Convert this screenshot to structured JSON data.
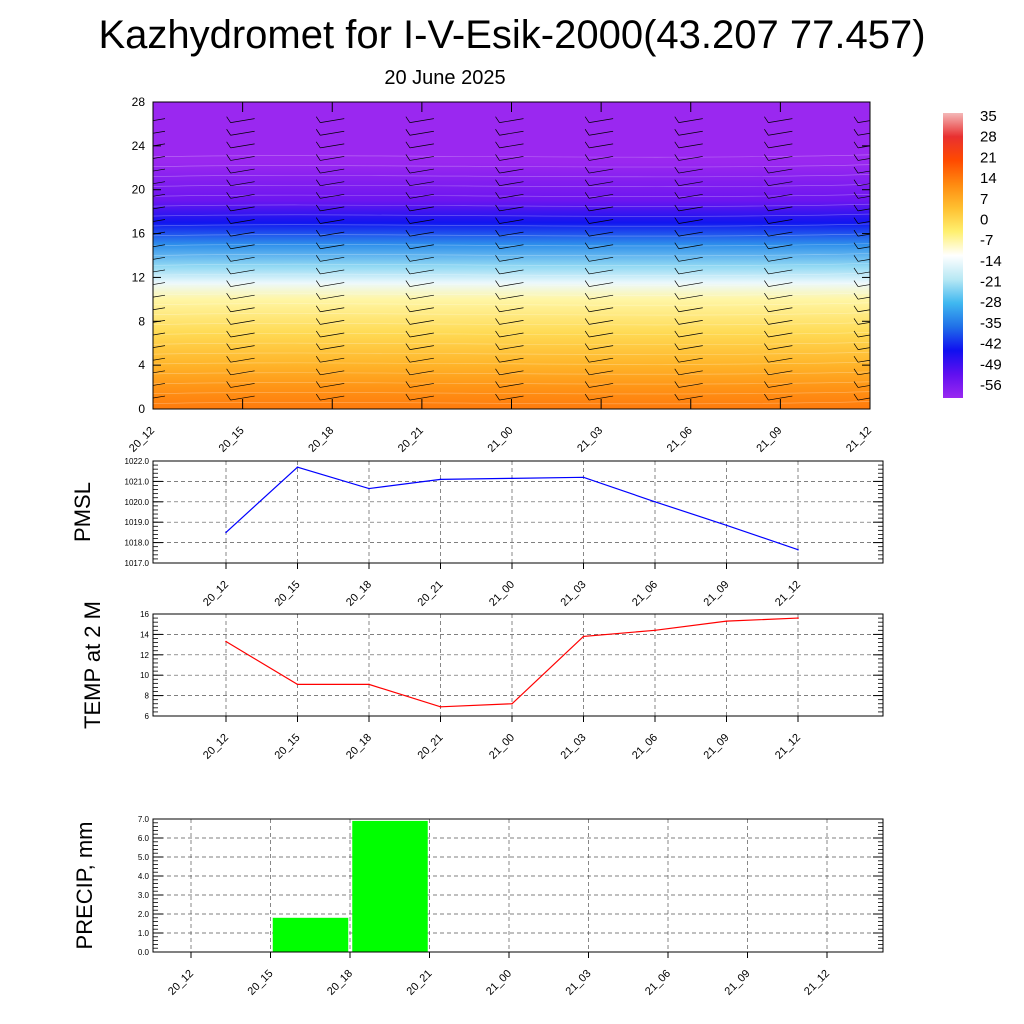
{
  "title": "Kazhydromet for I-V-Esik-2000(43.207 77.457)",
  "subtitle": "20 June 2025",
  "colors": {
    "pmsl_line": "#0000ff",
    "temp_line": "#ff0000",
    "precip_bar": "#00ff00",
    "colorbar": [
      "#f4b8b8",
      "#e83030",
      "#ff4a00",
      "#ff8a10",
      "#ffc030",
      "#fff070",
      "#ffffff",
      "#b8e8f4",
      "#40b8f0",
      "#2070e8",
      "#1010f0",
      "#6010f0",
      "#9a28f0"
    ]
  },
  "chart_data": [
    {
      "type": "heatmap",
      "title": "",
      "x_tick_labels": [
        "20_12",
        "20_15",
        "20_18",
        "20_21",
        "21_00",
        "21_03",
        "21_06",
        "21_09",
        "21_12"
      ],
      "y_ticks": [
        0,
        4,
        8,
        12,
        16,
        20,
        24,
        28
      ],
      "ylim": [
        0,
        28
      ],
      "colorbar_labels": [
        "35",
        "28",
        "21",
        "14",
        "7",
        "0",
        "-7",
        "-14",
        "-21",
        "-28",
        "-35",
        "-42",
        "-49",
        "-56"
      ],
      "colorbar_range": [
        -63,
        42
      ],
      "layers": [
        {
          "y": 0,
          "value": 18
        },
        {
          "y": 2,
          "value": 14
        },
        {
          "y": 4,
          "value": 9
        },
        {
          "y": 7,
          "value": 2
        },
        {
          "y": 10,
          "value": -5
        },
        {
          "y": 11.5,
          "value": -13
        },
        {
          "y": 13,
          "value": -22
        },
        {
          "y": 15,
          "value": -33
        },
        {
          "y": 17,
          "value": -45
        },
        {
          "y": 19,
          "value": -56
        },
        {
          "y": 21,
          "value": -60
        },
        {
          "y": 22.5,
          "value": -63
        },
        {
          "y": 28,
          "value": -63
        }
      ],
      "wind_barbs": true
    },
    {
      "type": "line",
      "ylabel": "PMSL",
      "x": [
        "20_12",
        "20_15",
        "20_18",
        "20_21",
        "21_00",
        "21_03",
        "21_06",
        "21_09",
        "21_12"
      ],
      "series": [
        {
          "values": [
            1018.5,
            1021.7,
            1020.65,
            1021.1,
            1021.15,
            1021.2,
            1020.0,
            1018.85,
            1017.65
          ]
        }
      ],
      "ylim": [
        1017.0,
        1022.0
      ],
      "y_tick_labels": [
        "1017.0",
        "1018.0",
        "1019.0",
        "1020.0",
        "1021.0",
        "1022.0"
      ],
      "grid": true
    },
    {
      "type": "line",
      "ylabel": "TEMP at 2 M",
      "x": [
        "20_12",
        "20_15",
        "20_18",
        "20_21",
        "21_00",
        "21_03",
        "21_06",
        "21_09",
        "21_12"
      ],
      "series": [
        {
          "values": [
            13.3,
            9.1,
            9.1,
            6.9,
            7.2,
            13.8,
            14.4,
            15.3,
            15.6
          ]
        }
      ],
      "ylim": [
        6,
        16
      ],
      "y_tick_labels": [
        "6",
        "8",
        "10",
        "12",
        "14",
        "16"
      ],
      "grid": true
    },
    {
      "type": "bar",
      "ylabel": "PRECIP, mm",
      "categories": [
        "20_12",
        "20_15",
        "20_18",
        "20_21",
        "21_00",
        "21_03",
        "21_06",
        "21_09",
        "21_12"
      ],
      "values": [
        0,
        1.8,
        6.9,
        0,
        0,
        0,
        0,
        0,
        0
      ],
      "ylim": [
        0,
        7.0
      ],
      "y_tick_labels": [
        "0.0",
        "1.0",
        "2.0",
        "3.0",
        "4.0",
        "5.0",
        "6.0",
        "7.0"
      ],
      "grid": true
    }
  ]
}
